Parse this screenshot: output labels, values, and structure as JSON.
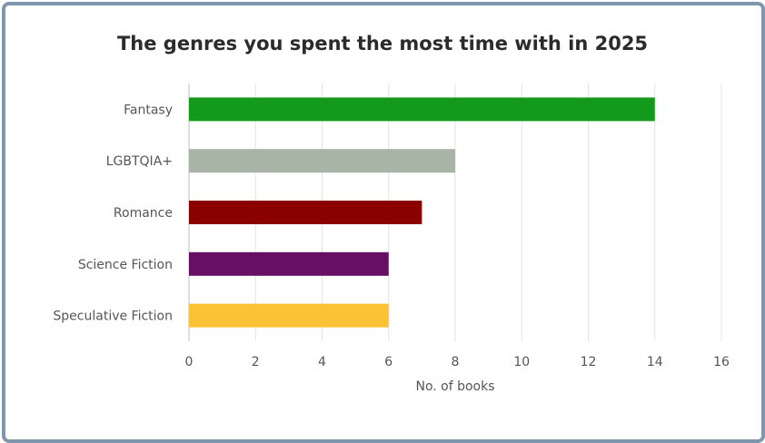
{
  "chart_data": {
    "type": "bar",
    "orientation": "horizontal",
    "title": "The genres you spent the most time with in 2025",
    "xlabel": "No. of books",
    "ylabel": "",
    "categories": [
      "Fantasy",
      "LGBTQIA+",
      "Romance",
      "Science Fiction",
      "Speculative Fiction"
    ],
    "values": [
      14,
      8,
      7,
      6,
      6
    ],
    "colors": [
      "#139a1b",
      "#a8b4a6",
      "#8b0000",
      "#650f65",
      "#fbc236"
    ],
    "xlim": [
      0,
      16
    ],
    "xticks": [
      0,
      2,
      4,
      6,
      8,
      10,
      12,
      14,
      16
    ],
    "grid": true,
    "legend": "none"
  },
  "frame_color": "#7f97ad"
}
